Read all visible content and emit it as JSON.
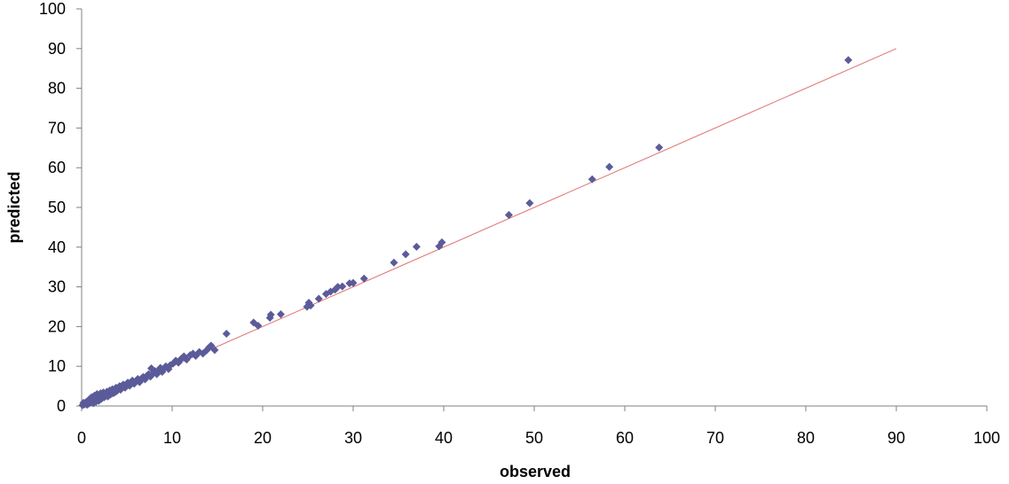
{
  "chart_data": {
    "type": "scatter",
    "title": "",
    "xlabel": "observed",
    "ylabel": "predicted",
    "xlim": [
      0,
      100
    ],
    "ylim": [
      0,
      100
    ],
    "x_ticks": [
      0,
      10,
      20,
      30,
      40,
      50,
      60,
      70,
      80,
      90,
      100
    ],
    "y_ticks": [
      0,
      10,
      20,
      30,
      40,
      50,
      60,
      70,
      80,
      90,
      100
    ],
    "grid": false,
    "legend": "none",
    "colors": {
      "marker": "#5b5b9a",
      "reference_line": "#e07070",
      "axis": "#808080"
    },
    "reference_line": {
      "x": [
        0,
        90
      ],
      "y": [
        0,
        90
      ]
    },
    "series": [
      {
        "marker": "diamond",
        "points": [
          [
            0.1,
            0.2
          ],
          [
            0.2,
            0.8
          ],
          [
            0.3,
            0.4
          ],
          [
            0.5,
            1.0
          ],
          [
            0.6,
            0.3
          ],
          [
            0.7,
            1.2
          ],
          [
            0.8,
            0.6
          ],
          [
            0.9,
            1.8
          ],
          [
            1.0,
            0.9
          ],
          [
            1.1,
            2.2
          ],
          [
            1.2,
            1.4
          ],
          [
            1.3,
            0.7
          ],
          [
            1.4,
            2.6
          ],
          [
            1.5,
            1.7
          ],
          [
            1.6,
            1.1
          ],
          [
            1.7,
            3.0
          ],
          [
            1.8,
            2.0
          ],
          [
            1.9,
            1.3
          ],
          [
            2.0,
            2.5
          ],
          [
            2.1,
            3.2
          ],
          [
            2.2,
            1.8
          ],
          [
            2.3,
            2.9
          ],
          [
            2.4,
            3.4
          ],
          [
            2.5,
            2.2
          ],
          [
            2.6,
            3.0
          ],
          [
            2.7,
            2.6
          ],
          [
            2.8,
            3.6
          ],
          [
            2.9,
            2.4
          ],
          [
            3.0,
            3.3
          ],
          [
            3.1,
            3.9
          ],
          [
            3.2,
            2.9
          ],
          [
            3.3,
            3.7
          ],
          [
            3.4,
            4.2
          ],
          [
            3.5,
            3.2
          ],
          [
            3.6,
            4.0
          ],
          [
            3.7,
            3.5
          ],
          [
            3.8,
            4.6
          ],
          [
            3.9,
            3.8
          ],
          [
            4.0,
            4.4
          ],
          [
            4.2,
            5.0
          ],
          [
            4.3,
            4.1
          ],
          [
            4.5,
            4.8
          ],
          [
            4.6,
            5.4
          ],
          [
            4.8,
            4.6
          ],
          [
            5.0,
            5.3
          ],
          [
            5.1,
            5.9
          ],
          [
            5.3,
            5.1
          ],
          [
            5.5,
            5.8
          ],
          [
            5.6,
            6.4
          ],
          [
            5.8,
            5.6
          ],
          [
            6.0,
            6.3
          ],
          [
            6.2,
            6.8
          ],
          [
            6.4,
            6.0
          ],
          [
            6.6,
            6.9
          ],
          [
            6.8,
            7.3
          ],
          [
            7.0,
            6.7
          ],
          [
            7.2,
            7.6
          ],
          [
            7.4,
            8.0
          ],
          [
            7.6,
            7.4
          ],
          [
            7.7,
            9.5
          ],
          [
            7.9,
            8.3
          ],
          [
            8.1,
            8.8
          ],
          [
            8.3,
            8.0
          ],
          [
            8.5,
            9.0
          ],
          [
            8.7,
            9.6
          ],
          [
            8.9,
            8.6
          ],
          [
            9.1,
            9.4
          ],
          [
            9.3,
            10.0
          ],
          [
            9.6,
            9.3
          ],
          [
            9.8,
            10.3
          ],
          [
            10.1,
            10.7
          ],
          [
            10.4,
            11.4
          ],
          [
            10.7,
            10.9
          ],
          [
            11.0,
            11.9
          ],
          [
            11.3,
            12.5
          ],
          [
            11.6,
            11.7
          ],
          [
            12.0,
            12.8
          ],
          [
            12.3,
            13.2
          ],
          [
            12.6,
            12.6
          ],
          [
            13.0,
            13.6
          ],
          [
            13.4,
            13.2
          ],
          [
            13.8,
            14.0
          ],
          [
            14.1,
            14.8
          ],
          [
            14.3,
            15.2
          ],
          [
            14.7,
            14.1
          ],
          [
            16.0,
            18.2
          ],
          [
            19.0,
            21.0
          ],
          [
            19.5,
            20.2
          ],
          [
            20.8,
            22.2
          ],
          [
            20.9,
            23.0
          ],
          [
            22.0,
            23.1
          ],
          [
            24.9,
            25.0
          ],
          [
            25.1,
            26.0
          ],
          [
            25.3,
            25.3
          ],
          [
            26.2,
            27.0
          ],
          [
            27.0,
            28.2
          ],
          [
            27.5,
            28.8
          ],
          [
            28.0,
            29.3
          ],
          [
            28.3,
            30.0
          ],
          [
            28.8,
            30.1
          ],
          [
            29.6,
            30.9
          ],
          [
            30.0,
            31.0
          ],
          [
            31.2,
            32.1
          ],
          [
            34.5,
            36.1
          ],
          [
            35.8,
            38.2
          ],
          [
            37.0,
            40.1
          ],
          [
            39.5,
            40.2
          ],
          [
            39.8,
            41.2
          ],
          [
            47.2,
            48.1
          ],
          [
            49.5,
            51.1
          ],
          [
            56.4,
            57.1
          ],
          [
            58.3,
            60.2
          ],
          [
            63.8,
            65.1
          ],
          [
            84.7,
            87.1
          ]
        ]
      }
    ]
  }
}
